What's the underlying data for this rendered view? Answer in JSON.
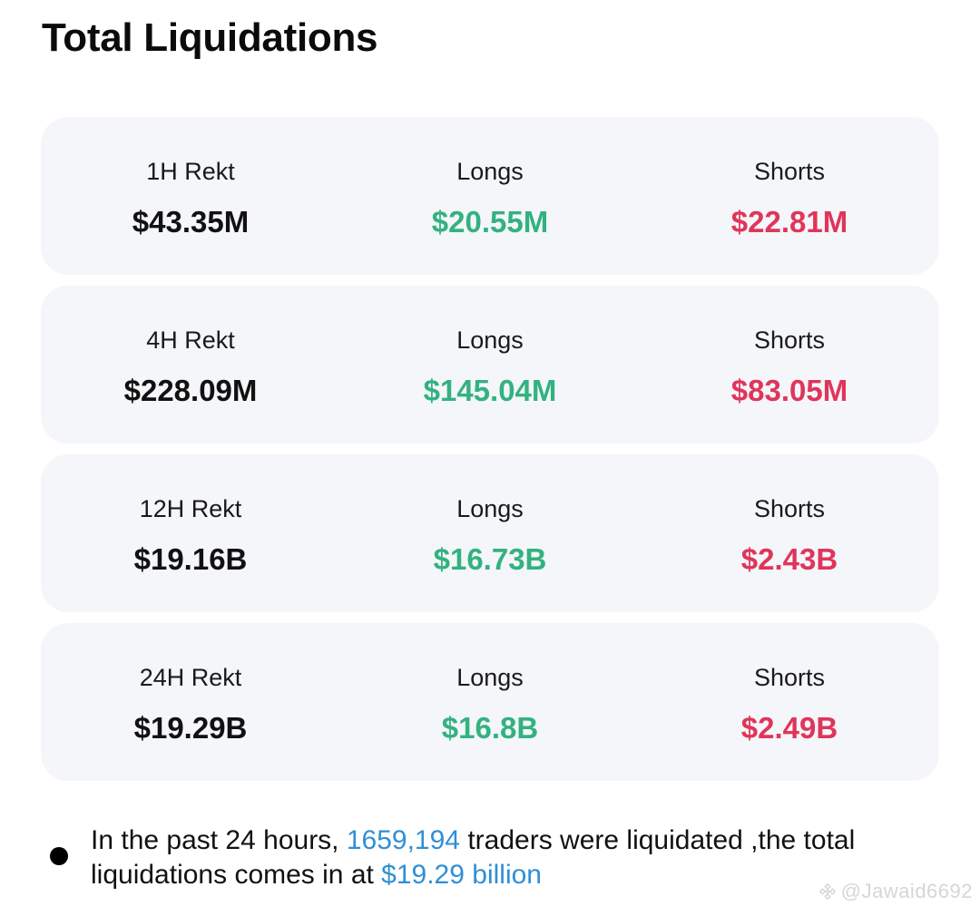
{
  "title": "Total Liquidations",
  "colors": {
    "long": "#33b27f",
    "short": "#e0355a",
    "highlight": "#2f8fd6",
    "card_bg": "#f4f6f9"
  },
  "cards": [
    {
      "period_label": "1H Rekt",
      "total": "$43.35M",
      "longs_label": "Longs",
      "longs": "$20.55M",
      "shorts_label": "Shorts",
      "shorts": "$22.81M"
    },
    {
      "period_label": "4H Rekt",
      "total": "$228.09M",
      "longs_label": "Longs",
      "longs": "$145.04M",
      "shorts_label": "Shorts",
      "shorts": "$83.05M"
    },
    {
      "period_label": "12H Rekt",
      "total": "$19.16B",
      "longs_label": "Longs",
      "longs": "$16.73B",
      "shorts_label": "Shorts",
      "shorts": "$2.43B"
    },
    {
      "period_label": "24H Rekt",
      "total": "$19.29B",
      "longs_label": "Longs",
      "longs": "$16.8B",
      "shorts_label": "Shorts",
      "shorts": "$2.49B"
    }
  ],
  "summary": {
    "prefix": "In the past 24 hours, ",
    "traders_count": "1659,194",
    "middle": " traders were liquidated ,the total liquidations comes in at ",
    "total_amount": "$19.29 billion"
  },
  "watermark": {
    "icon": "binance-logo-icon",
    "handle": "@Jawaid6692"
  }
}
